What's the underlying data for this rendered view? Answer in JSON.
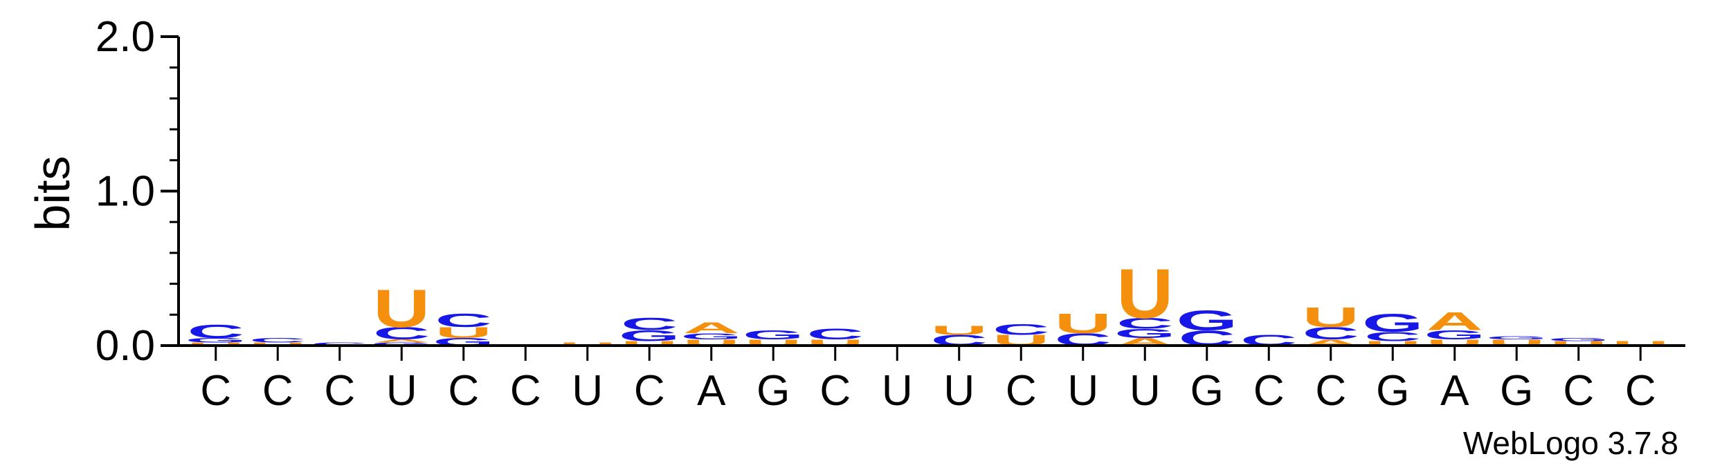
{
  "chart_data": {
    "type": "sequence-logo",
    "ylabel": "bits",
    "ylim": [
      0,
      2.0
    ],
    "yticks": [
      "2.0",
      "1.0",
      "0.0"
    ],
    "yticks_values": [
      2.0,
      1.0,
      0.0
    ],
    "minor_tick_step": 0.2,
    "credit": "WebLogo 3.7.8",
    "colors": {
      "A": "#f5900e",
      "C": "#1717e8",
      "G": "#1717e8",
      "U": "#f5900e"
    },
    "x_labels": [
      "C",
      "C",
      "C",
      "U",
      "C",
      "C",
      "U",
      "C",
      "A",
      "G",
      "C",
      "U",
      "U",
      "C",
      "U",
      "U",
      "G",
      "C",
      "C",
      "G",
      "A",
      "G",
      "C",
      "C"
    ],
    "positions": [
      [
        {
          "b": "U",
          "h": 0.02
        },
        {
          "b": "G",
          "h": 0.03
        },
        {
          "b": "C",
          "h": 0.09
        }
      ],
      [
        {
          "b": "U",
          "h": 0.02
        },
        {
          "b": "C",
          "h": 0.03
        }
      ],
      [
        {
          "b": "C",
          "h": 0.02
        }
      ],
      [
        {
          "b": "G",
          "h": 0.02
        },
        {
          "b": "A",
          "h": 0.02
        },
        {
          "b": "C",
          "h": 0.08
        },
        {
          "b": "U",
          "h": 0.25
        }
      ],
      [
        {
          "b": "G",
          "h": 0.05
        },
        {
          "b": "U",
          "h": 0.07
        },
        {
          "b": "C",
          "h": 0.09
        }
      ],
      [],
      [
        {
          "b": "U",
          "h": 0.02
        }
      ],
      [
        {
          "b": "U",
          "h": 0.03
        },
        {
          "b": "G",
          "h": 0.07
        },
        {
          "b": "C",
          "h": 0.08
        }
      ],
      [
        {
          "b": "U",
          "h": 0.04
        },
        {
          "b": "G",
          "h": 0.04
        },
        {
          "b": "A",
          "h": 0.07
        }
      ],
      [
        {
          "b": "U",
          "h": 0.04
        },
        {
          "b": "G",
          "h": 0.06
        }
      ],
      [
        {
          "b": "U",
          "h": 0.04
        },
        {
          "b": "C",
          "h": 0.07
        }
      ],
      [],
      [
        {
          "b": "C",
          "h": 0.07
        },
        {
          "b": "U",
          "h": 0.06
        }
      ],
      [
        {
          "b": "U",
          "h": 0.07
        },
        {
          "b": "C",
          "h": 0.07
        }
      ],
      [
        {
          "b": "C",
          "h": 0.08
        },
        {
          "b": "U",
          "h": 0.13
        }
      ],
      [
        {
          "b": "A",
          "h": 0.05
        },
        {
          "b": "G",
          "h": 0.06
        },
        {
          "b": "C",
          "h": 0.07
        },
        {
          "b": "U",
          "h": 0.33
        }
      ],
      [
        {
          "b": "C",
          "h": 0.1
        },
        {
          "b": "G",
          "h": 0.13
        }
      ],
      [
        {
          "b": "C",
          "h": 0.07
        }
      ],
      [
        {
          "b": "A",
          "h": 0.04
        },
        {
          "b": "C",
          "h": 0.08
        },
        {
          "b": "U",
          "h": 0.13
        }
      ],
      [
        {
          "b": "U",
          "h": 0.03
        },
        {
          "b": "C",
          "h": 0.06
        },
        {
          "b": "G",
          "h": 0.12
        }
      ],
      [
        {
          "b": "U",
          "h": 0.04
        },
        {
          "b": "G",
          "h": 0.06
        },
        {
          "b": "A",
          "h": 0.12
        }
      ],
      [
        {
          "b": "U",
          "h": 0.04
        },
        {
          "b": "G",
          "h": 0.02
        }
      ],
      [
        {
          "b": "U",
          "h": 0.03
        },
        {
          "b": "G",
          "h": 0.02
        }
      ],
      [
        {
          "b": "U",
          "h": 0.03
        }
      ]
    ]
  }
}
